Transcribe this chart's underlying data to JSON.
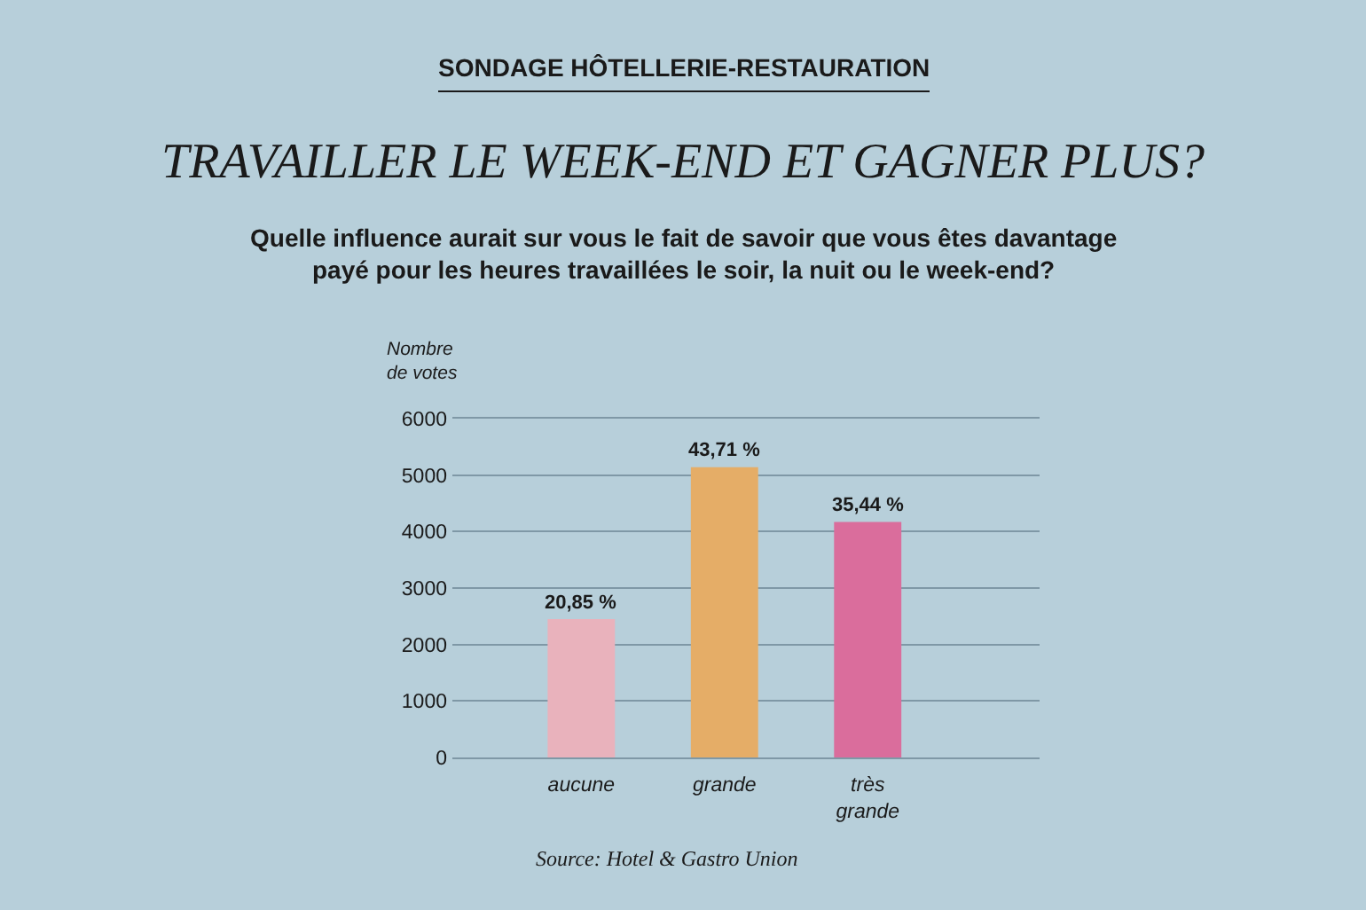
{
  "chart_data": {
    "type": "bar",
    "title": "TRAVAILLER LE WEEK-END ET GAGNER PLUS?",
    "subtitle": "Quelle influence aurait sur vous le fait de savoir que vous êtes davantage payé pour les heures travaillées le soir, la nuit ou le week-end?",
    "ylabel": "Nombre de votes",
    "annotations": [
      "SONDAGE HÔTELLERIE-RESTAURATION",
      {
        "text": "20,85 %",
        "x": "aucune",
        "y": 2450
      },
      {
        "text": "43,71 %",
        "x": "grande",
        "y": 5140
      },
      {
        "text": "35,44 %",
        "x": "très grande",
        "y": 4170
      },
      "Source: Hotel & Gastro Union"
    ],
    "categories": [
      "aucune",
      "grande",
      "très grande"
    ],
    "values": [
      2450,
      5140,
      4170
    ],
    "colors": [
      "#e9b2bc",
      "#e5ad67",
      "#da6d9c"
    ],
    "ylim": [
      0,
      6000
    ],
    "yticks": [
      0,
      1000,
      2000,
      3000,
      4000,
      5000,
      6000
    ],
    "grid": "y",
    "legend": false
  }
}
